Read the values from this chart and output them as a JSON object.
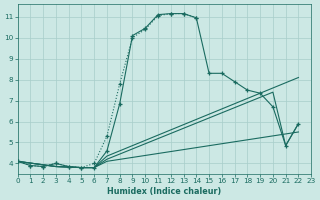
{
  "xlabel": "Humidex (Indice chaleur)",
  "bg_color": "#cce8e4",
  "grid_color": "#a8ceca",
  "line_color": "#1a6b60",
  "xlim": [
    0,
    23
  ],
  "ylim": [
    3.5,
    11.6
  ],
  "xticks": [
    0,
    1,
    2,
    3,
    4,
    5,
    6,
    7,
    8,
    9,
    10,
    11,
    12,
    13,
    14,
    15,
    16,
    17,
    18,
    19,
    20,
    21,
    22,
    23
  ],
  "yticks": [
    4,
    5,
    6,
    7,
    8,
    9,
    10,
    11
  ],
  "solid_x": [
    0,
    1,
    2,
    3,
    4,
    5,
    6,
    7,
    8,
    9,
    10,
    11,
    12,
    13,
    14,
    15,
    16,
    17,
    18,
    19,
    20,
    21,
    22
  ],
  "solid_y": [
    4.1,
    3.9,
    3.85,
    4.0,
    3.85,
    3.8,
    3.8,
    4.6,
    6.85,
    10.1,
    10.45,
    11.1,
    11.15,
    11.15,
    10.95,
    8.3,
    8.3,
    7.9,
    7.5,
    7.35,
    6.7,
    4.85,
    5.9
  ],
  "dotted_x": [
    0,
    1,
    2,
    3,
    4,
    5,
    6,
    7,
    8,
    9,
    10,
    11,
    12,
    13,
    14
  ],
  "dotted_y": [
    4.1,
    3.9,
    3.85,
    4.0,
    3.85,
    3.8,
    4.0,
    5.3,
    7.8,
    10.0,
    10.4,
    11.05,
    11.15,
    11.15,
    10.95
  ],
  "fan_start_x": 0,
  "fan_start_y": 4.1,
  "fan_mid_x": 6,
  "fan_mid_y1": 3.8,
  "fan_mid_y2": 3.8,
  "fan_mid_y3": 3.8,
  "line1_x": [
    0,
    3,
    5,
    6,
    7,
    22
  ],
  "line1_y": [
    4.1,
    3.85,
    3.8,
    3.8,
    4.35,
    8.1
  ],
  "line2_x": [
    0,
    3,
    5,
    6,
    7,
    20,
    21,
    22
  ],
  "line2_y": [
    4.1,
    3.85,
    3.8,
    3.8,
    4.2,
    7.4,
    4.85,
    5.9
  ],
  "line3_x": [
    0,
    3,
    5,
    6,
    7,
    22
  ],
  "line3_y": [
    4.1,
    3.85,
    3.8,
    3.8,
    4.1,
    5.5
  ]
}
